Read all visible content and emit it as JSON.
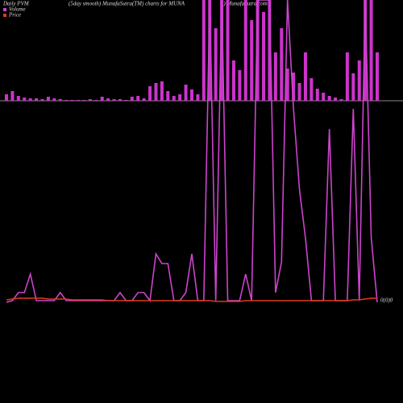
{
  "chart_data": [
    {
      "type": "bar",
      "title": "Daily PVM",
      "subtitle": "(5day smooth) MunafaSutra(TM) charts for MUNA",
      "source": "() MunafaSutra.com",
      "color": "#cc33cc",
      "ylim": [
        0,
        125
      ],
      "values": [
        8,
        12,
        6,
        4,
        3,
        3,
        2,
        5,
        3,
        2,
        1,
        1,
        1,
        1,
        2,
        1,
        5,
        3,
        2,
        2,
        1,
        5,
        6,
        3,
        18,
        22,
        24,
        12,
        6,
        8,
        20,
        14,
        8,
        130,
        130,
        90,
        130,
        130,
        50,
        38,
        130,
        100,
        130,
        110,
        130,
        60,
        90,
        40,
        35,
        22,
        60,
        28,
        15,
        10,
        6,
        4,
        2,
        60,
        34,
        50,
        130,
        130,
        60
      ]
    },
    {
      "type": "line",
      "ylim": [
        0,
        375
      ],
      "end_label": "0(0)0",
      "series": [
        {
          "name": "Volume",
          "color": "#cc44cc",
          "values": [
            0,
            2,
            12,
            12,
            35,
            2,
            2,
            2,
            2,
            12,
            2,
            2,
            2,
            2,
            2,
            2,
            2,
            2,
            2,
            12,
            2,
            2,
            12,
            12,
            2,
            60,
            48,
            48,
            2,
            2,
            12,
            60,
            2,
            2,
            375,
            2,
            375,
            2,
            2,
            2,
            35,
            2,
            375,
            375,
            375,
            12,
            50,
            375,
            240,
            140,
            80,
            2,
            2,
            2,
            215,
            2,
            2,
            2,
            240,
            2,
            375,
            80,
            0
          ]
        },
        {
          "name": "Price",
          "color": "#e03a1e",
          "values": [
            3,
            4,
            5,
            5,
            5,
            5,
            5,
            4,
            4,
            4,
            4,
            3,
            3,
            3,
            3,
            3,
            3,
            2,
            2,
            2,
            2,
            2,
            2,
            2,
            2,
            2,
            2,
            2,
            2,
            2,
            2,
            2,
            2,
            2,
            2,
            1,
            1,
            1,
            1,
            1,
            2,
            2,
            2,
            2,
            2,
            2,
            2,
            2,
            2,
            2,
            2,
            2,
            2,
            2,
            2,
            2,
            2,
            2,
            3,
            3,
            4,
            5,
            5
          ]
        }
      ]
    }
  ]
}
